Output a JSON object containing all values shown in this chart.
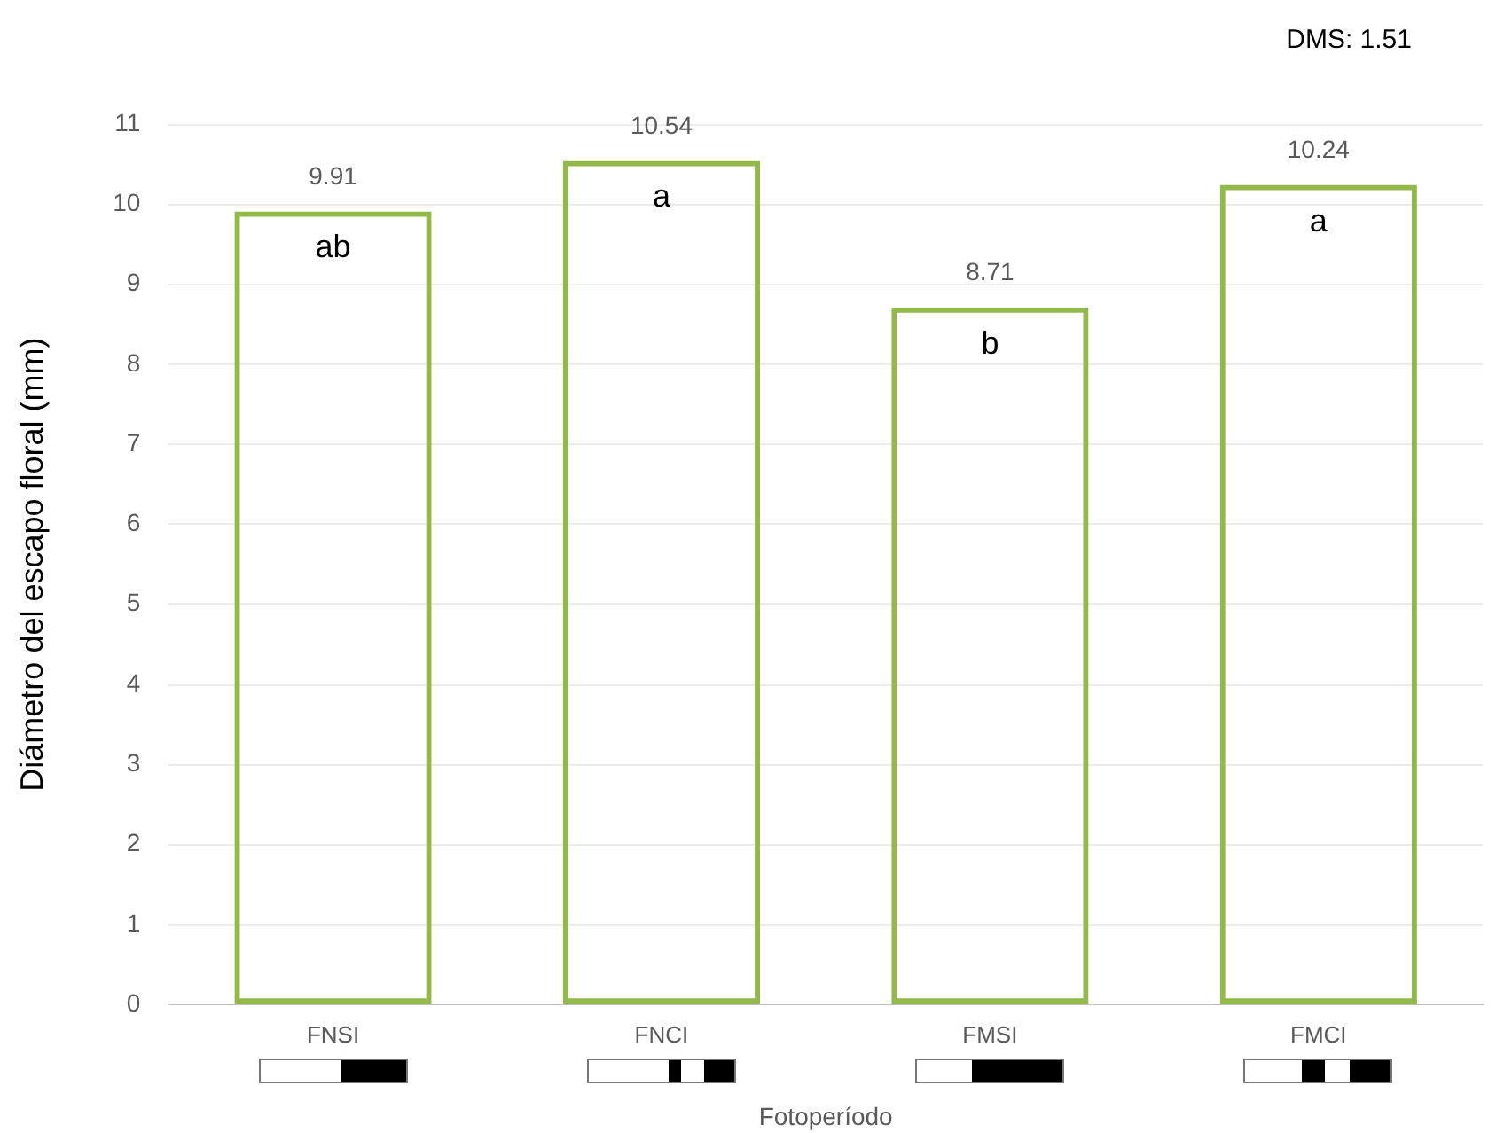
{
  "chart_data": {
    "type": "bar",
    "xlabel": "Fotoperíodo",
    "ylabel": "Diámetro del escapo floral (mm)",
    "categories": [
      "FNSI",
      "FNCI",
      "FMSI",
      "FMCI"
    ],
    "series": [
      {
        "color": "#92b94a",
        "values": [
          9.91,
          10.54,
          8.71,
          10.24
        ]
      }
    ],
    "ylim": [
      0,
      11
    ],
    "yticks": [
      0,
      1,
      2,
      3,
      4,
      5,
      6,
      7,
      8,
      9,
      10,
      11
    ],
    "grid": "y",
    "data_labels": true,
    "annotations": [
      "DMS: 1.51",
      "ab",
      "a",
      "b",
      "a"
    ]
  }
}
